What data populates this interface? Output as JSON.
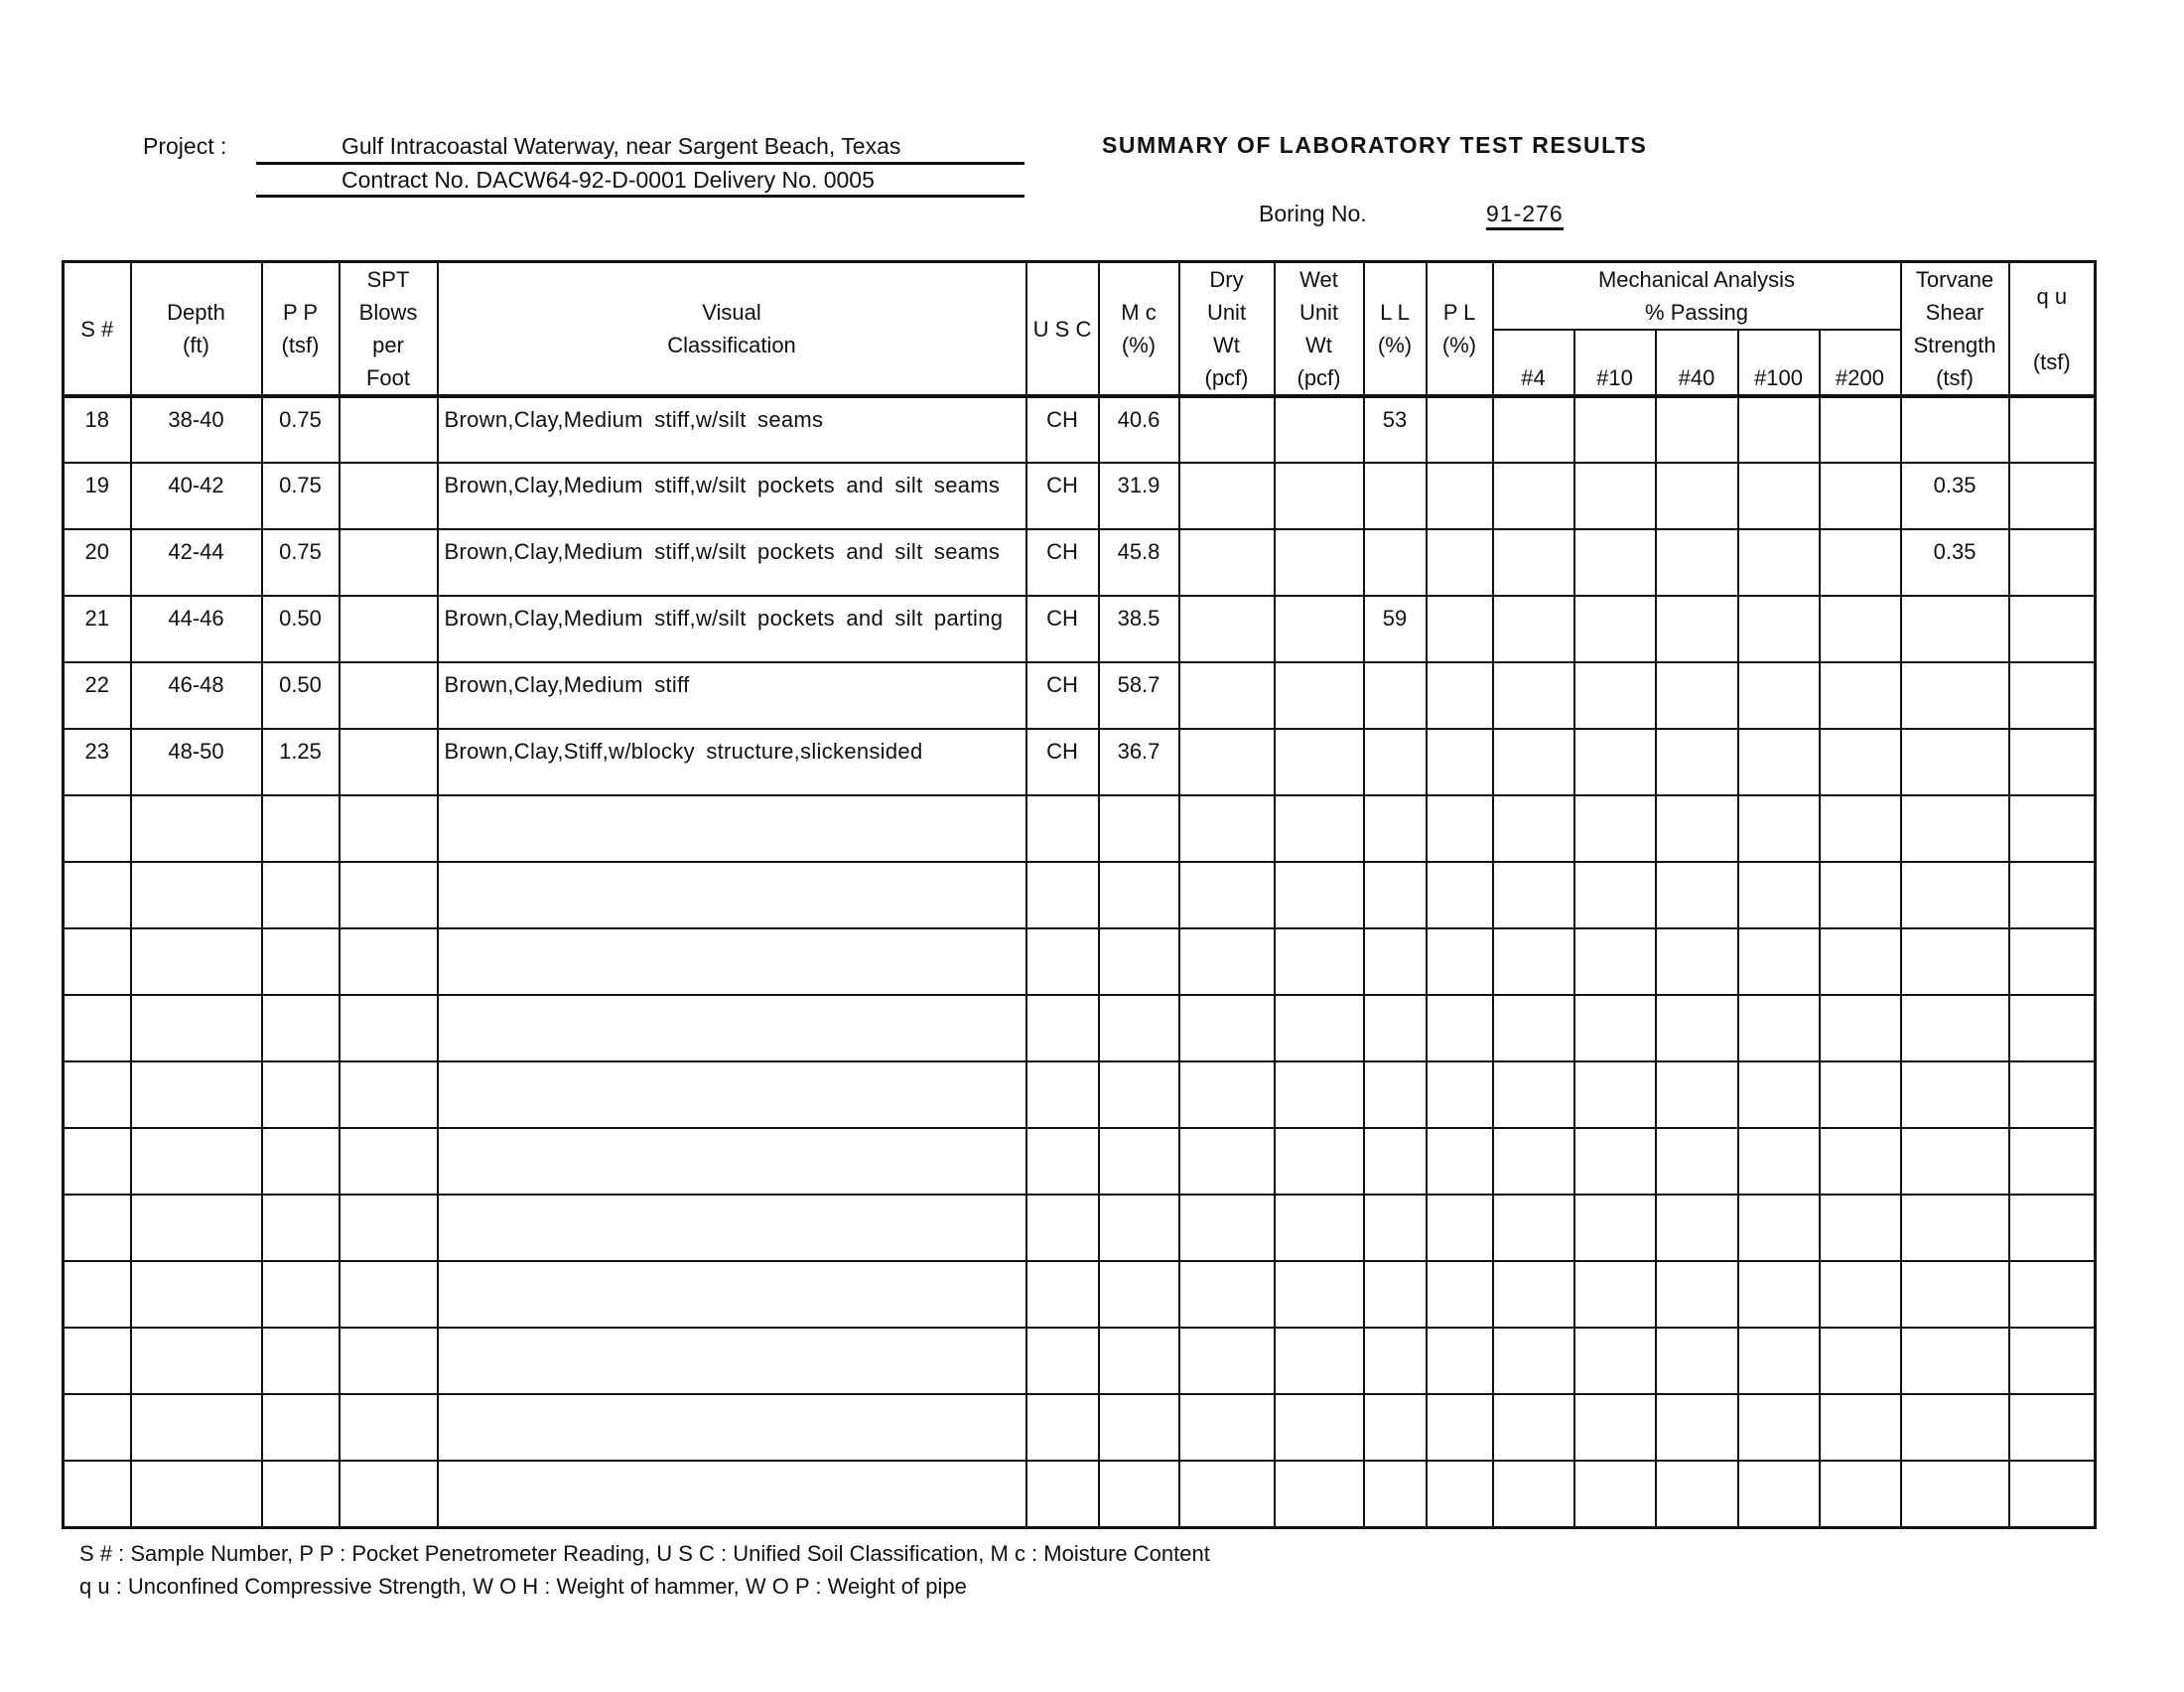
{
  "header": {
    "project_label": "Project :",
    "project_line1": "Gulf Intracoastal Waterway, near Sargent Beach, Texas",
    "project_line2": "Contract No. DACW64-92-D-0001 Delivery No. 0005",
    "title": "SUMMARY OF LABORATORY TEST RESULTS",
    "boring_label": "Boring No.",
    "boring_no": "91-276"
  },
  "table": {
    "columns": [
      {
        "key": "s",
        "label": "S #"
      },
      {
        "key": "depth",
        "label": "Depth\n(ft)"
      },
      {
        "key": "pp",
        "label": "P P\n(tsf)"
      },
      {
        "key": "spt",
        "label": "SPT\nBlows\nper\nFoot"
      },
      {
        "key": "vc",
        "label": "Visual\nClassification"
      },
      {
        "key": "usc",
        "label": "U S C"
      },
      {
        "key": "mc",
        "label": "M c\n(%)"
      },
      {
        "key": "dry",
        "label": "Dry\nUnit\nWt\n(pcf)"
      },
      {
        "key": "wet",
        "label": "Wet\nUnit\nWt\n(pcf)"
      },
      {
        "key": "ll",
        "label": "L L\n(%)"
      },
      {
        "key": "pl",
        "label": "P L\n(%)"
      },
      {
        "key": "p4",
        "label": "#4"
      },
      {
        "key": "p10",
        "label": "#10"
      },
      {
        "key": "p40",
        "label": "#40"
      },
      {
        "key": "p100",
        "label": "#100"
      },
      {
        "key": "p200",
        "label": "#200"
      },
      {
        "key": "tv",
        "label": "Torvane\nShear\nStrength\n(tsf)"
      },
      {
        "key": "qu",
        "label": "q u\n\n(tsf)"
      }
    ],
    "group_label": "Mechanical Analysis\n% Passing",
    "rows": [
      {
        "s": "18",
        "depth": "38-40",
        "pp": "0.75",
        "spt": "",
        "vc": "Brown,Clay,Medium stiff,w/silt seams",
        "usc": "CH",
        "mc": "40.6",
        "dry": "",
        "wet": "",
        "ll": "53",
        "pl": "",
        "p4": "",
        "p10": "",
        "p40": "",
        "p100": "",
        "p200": "",
        "tv": "",
        "qu": ""
      },
      {
        "s": "19",
        "depth": "40-42",
        "pp": "0.75",
        "spt": "",
        "vc": "Brown,Clay,Medium stiff,w/silt pockets and silt seams",
        "usc": "CH",
        "mc": "31.9",
        "dry": "",
        "wet": "",
        "ll": "",
        "pl": "",
        "p4": "",
        "p10": "",
        "p40": "",
        "p100": "",
        "p200": "",
        "tv": "0.35",
        "qu": ""
      },
      {
        "s": "20",
        "depth": "42-44",
        "pp": "0.75",
        "spt": "",
        "vc": "Brown,Clay,Medium stiff,w/silt pockets and silt seams",
        "usc": "CH",
        "mc": "45.8",
        "dry": "",
        "wet": "",
        "ll": "",
        "pl": "",
        "p4": "",
        "p10": "",
        "p40": "",
        "p100": "",
        "p200": "",
        "tv": "0.35",
        "qu": ""
      },
      {
        "s": "21",
        "depth": "44-46",
        "pp": "0.50",
        "spt": "",
        "vc": "Brown,Clay,Medium stiff,w/silt pockets and silt parting",
        "usc": "CH",
        "mc": "38.5",
        "dry": "",
        "wet": "",
        "ll": "59",
        "pl": "",
        "p4": "",
        "p10": "",
        "p40": "",
        "p100": "",
        "p200": "",
        "tv": "",
        "qu": ""
      },
      {
        "s": "22",
        "depth": "46-48",
        "pp": "0.50",
        "spt": "",
        "vc": "Brown,Clay,Medium stiff",
        "usc": "CH",
        "mc": "58.7",
        "dry": "",
        "wet": "",
        "ll": "",
        "pl": "",
        "p4": "",
        "p10": "",
        "p40": "",
        "p100": "",
        "p200": "",
        "tv": "",
        "qu": ""
      },
      {
        "s": "23",
        "depth": "48-50",
        "pp": "1.25",
        "spt": "",
        "vc": "Brown,Clay,Stiff,w/blocky structure,slickensided",
        "usc": "CH",
        "mc": "36.7",
        "dry": "",
        "wet": "",
        "ll": "",
        "pl": "",
        "p4": "",
        "p10": "",
        "p40": "",
        "p100": "",
        "p200": "",
        "tv": "",
        "qu": ""
      }
    ],
    "blank_rows": 11
  },
  "footer": {
    "line1": "S # : Sample Number, P P : Pocket Penetrometer Reading, U S C : Unified Soil Classification, M c : Moisture Content",
    "line2": "q u : Unconfined Compressive Strength, W O H : Weight of hammer, W O P : Weight of pipe"
  }
}
